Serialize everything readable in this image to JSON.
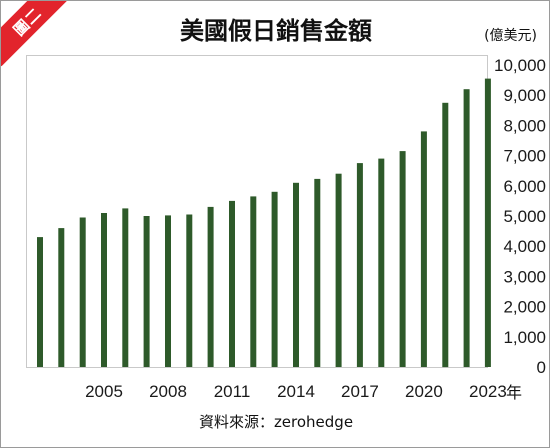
{
  "badge": "圖二",
  "chart_data": {
    "type": "bar",
    "title": "美國假日銷售金額",
    "ylabel": "(億美元)",
    "xlabel": "年",
    "source": "資料來源：zerohedge",
    "ylim": [
      0,
      10000
    ],
    "yticks": [
      "0",
      "1,000",
      "2,000",
      "3,000",
      "4,000",
      "5,000",
      "6,000",
      "7,000",
      "8,000",
      "9,000",
      "10,000"
    ],
    "x_tick_labels": [
      "2005",
      "2008",
      "2011",
      "2014",
      "2017",
      "2020",
      "2023"
    ],
    "categories": [
      "2002",
      "2003",
      "2004",
      "2005",
      "2006",
      "2007",
      "2008",
      "2009",
      "2010",
      "2011",
      "2012",
      "2013",
      "2014",
      "2015",
      "2016",
      "2017",
      "2018",
      "2019",
      "2020",
      "2021",
      "2022",
      "2023"
    ],
    "values": [
      4300,
      4600,
      4950,
      5100,
      5250,
      5000,
      5020,
      5050,
      5300,
      5500,
      5650,
      5800,
      6100,
      6230,
      6400,
      6750,
      6900,
      7150,
      7800,
      8750,
      9200,
      9550
    ],
    "bar_color": "#2e5a2a",
    "grid": false,
    "y_axis_position": "right"
  }
}
